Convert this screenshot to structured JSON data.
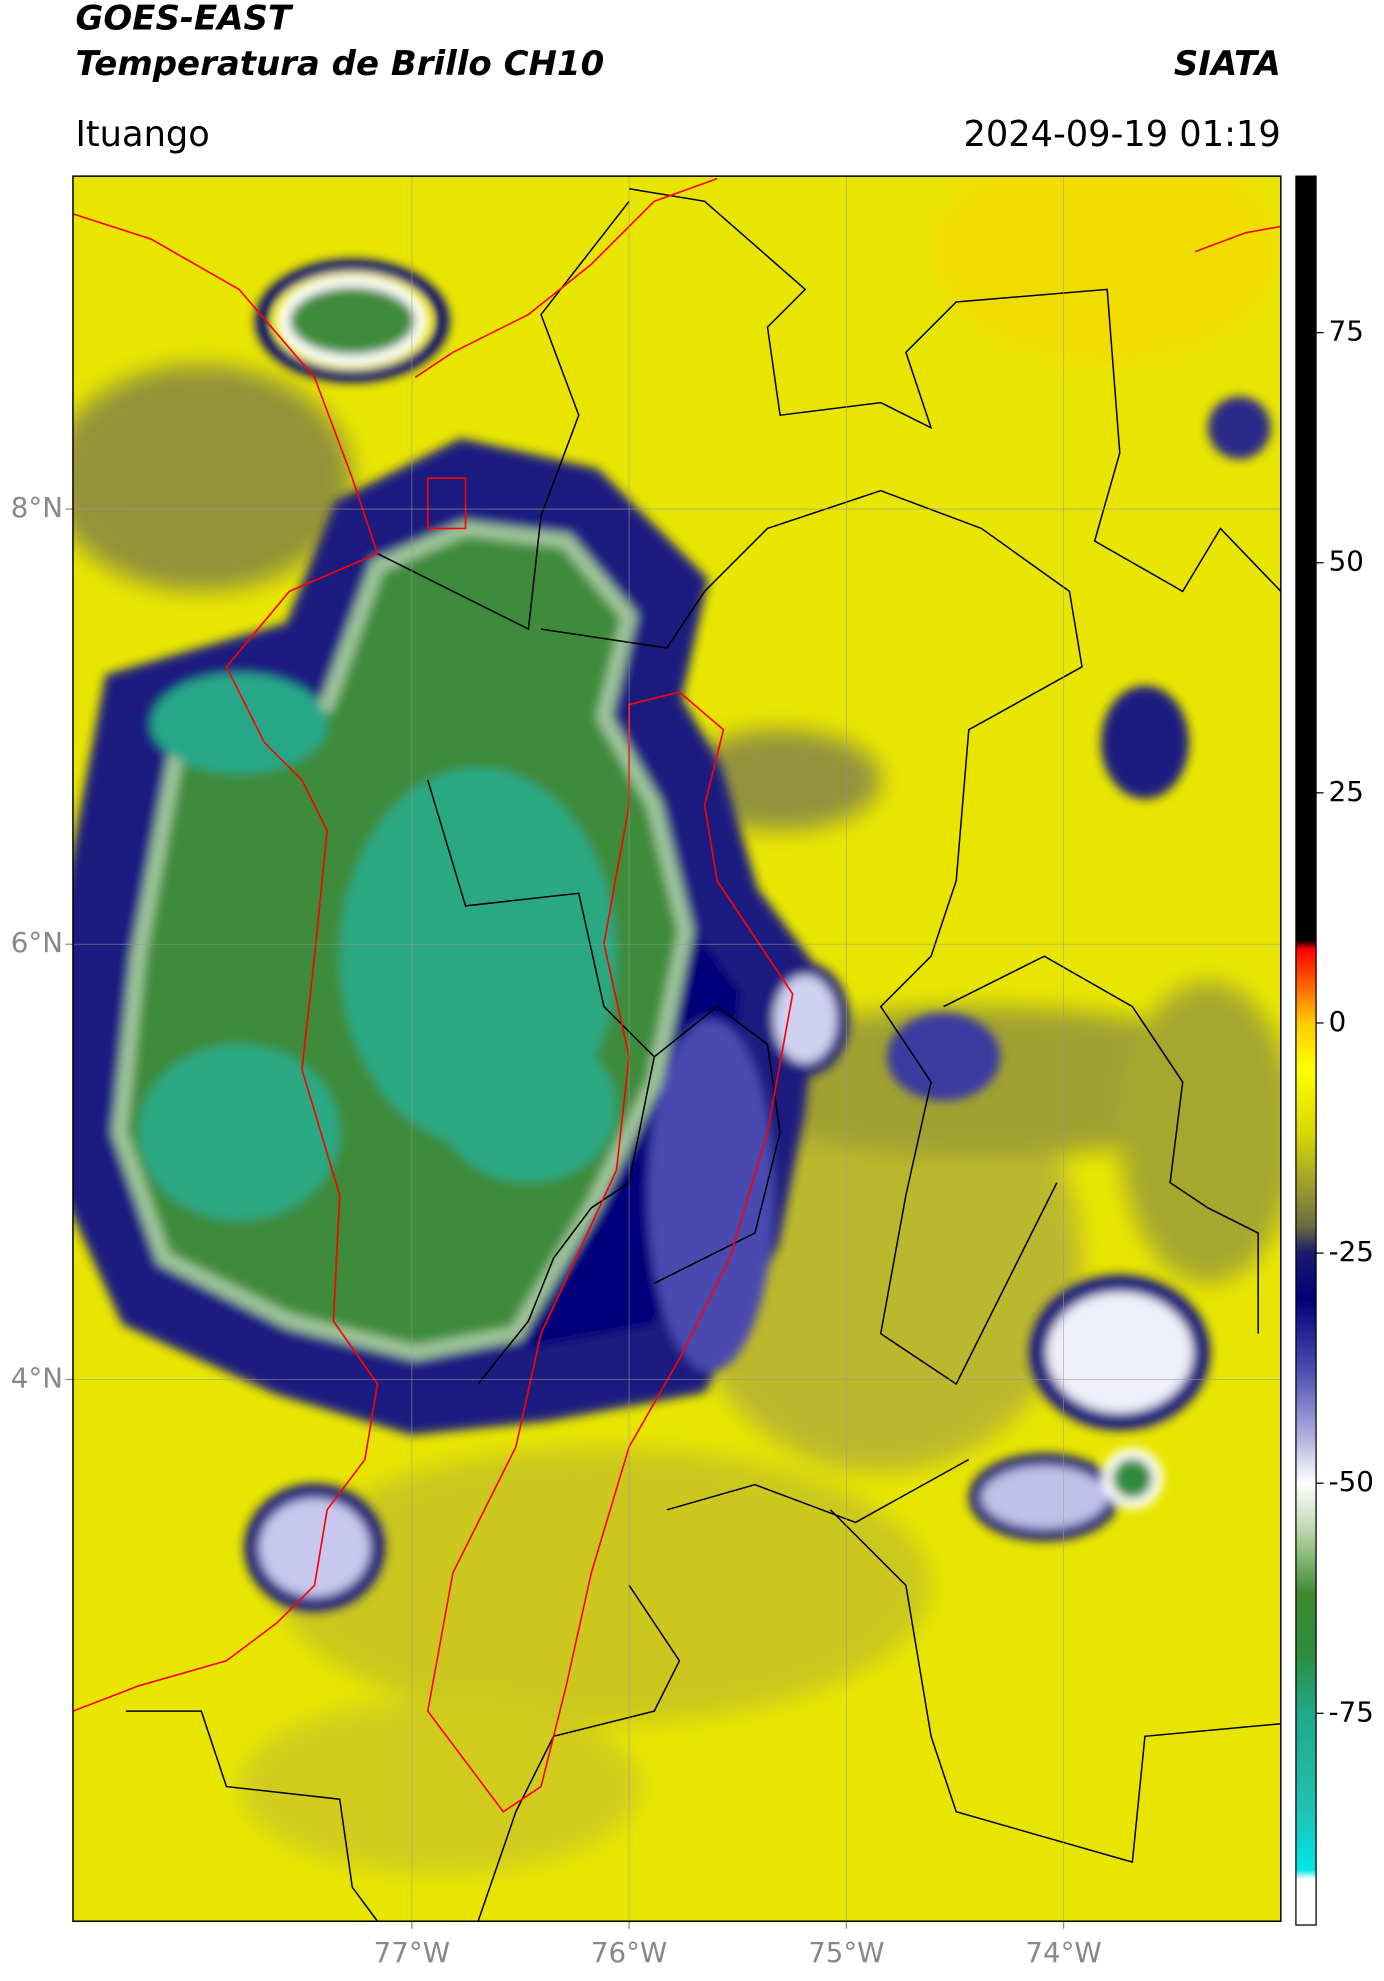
{
  "header": {
    "title": "GOES-EAST",
    "subtitle": "Temperatura de Brillo CH10",
    "source": "SIATA",
    "location": "Ituango",
    "datetime": "2024-09-19 01:19"
  },
  "map": {
    "xlim": [
      -78.56,
      -73.0
    ],
    "ylim": [
      1.51,
      9.53
    ],
    "xticks": [
      {
        "value": -77,
        "label": "77°W"
      },
      {
        "value": -76,
        "label": "76°W"
      },
      {
        "value": -75,
        "label": "75°W"
      },
      {
        "value": -74,
        "label": "74°W"
      }
    ],
    "yticks": [
      {
        "value": 8,
        "label": "8°N"
      },
      {
        "value": 6,
        "label": "6°N"
      },
      {
        "value": 4,
        "label": "4°N"
      }
    ],
    "grid": true
  },
  "colorbar": {
    "lim": [
      -98,
      92
    ],
    "ticks": [
      75,
      50,
      25,
      0,
      -25,
      -50,
      -75
    ],
    "stops": [
      -98,
      -93,
      -92,
      -85,
      -75,
      -68,
      -62,
      -55,
      -50,
      -45,
      -38,
      -30,
      -25,
      -22,
      -18,
      -12,
      -5,
      0,
      4,
      8,
      9,
      92
    ],
    "colors": [
      "#ffffff",
      "#ffffff",
      "#00e5e5",
      "#20c0b0",
      "#1fa88a",
      "#2e8b3a",
      "#3d8b2f",
      "#bfd8b0",
      "#ffffff",
      "#b0b0e0",
      "#5050b0",
      "#00007a",
      "#1a1a70",
      "#6b6b40",
      "#9a9a30",
      "#d8d800",
      "#ffff00",
      "#ffcc00",
      "#ff6600",
      "#ff0000",
      "#000000",
      "#000000"
    ]
  }
}
